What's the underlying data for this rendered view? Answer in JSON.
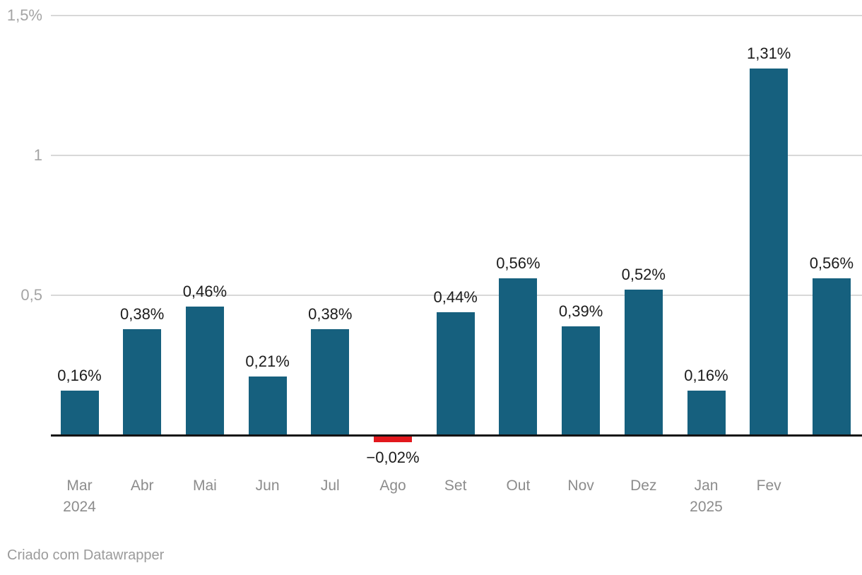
{
  "footer": {
    "attribution": "Criado com Datawrapper"
  },
  "chart_data": {
    "type": "bar",
    "title": "",
    "xlabel": "",
    "ylabel": "",
    "ylim": [
      -0.05,
      1.5
    ],
    "grid": true,
    "unit_suffix": "%",
    "colors": {
      "positive_bar": "#16607e",
      "negative_bar": "#e2181d",
      "gridline": "#d8d8d8",
      "baseline": "#141414",
      "value_label": "#1c1c1c",
      "axis_label": "#8c8c8c",
      "y_tick_label": "#a4a4a4"
    },
    "y_ticks": [
      {
        "value": 1.5,
        "label": "1,5%"
      },
      {
        "value": 1.0,
        "label": "1"
      },
      {
        "value": 0.5,
        "label": "0,5"
      }
    ],
    "points": [
      {
        "month": "Mar",
        "year": "2024",
        "value": 0.16,
        "label": "0,16%"
      },
      {
        "month": "Abr",
        "year": "",
        "value": 0.38,
        "label": "0,38%"
      },
      {
        "month": "Mai",
        "year": "",
        "value": 0.46,
        "label": "0,46%"
      },
      {
        "month": "Jun",
        "year": "",
        "value": 0.21,
        "label": "0,21%"
      },
      {
        "month": "Jul",
        "year": "",
        "value": 0.38,
        "label": "0,38%"
      },
      {
        "month": "Ago",
        "year": "",
        "value": -0.02,
        "label": "−0,02%"
      },
      {
        "month": "Set",
        "year": "",
        "value": 0.44,
        "label": "0,44%"
      },
      {
        "month": "Out",
        "year": "",
        "value": 0.56,
        "label": "0,56%"
      },
      {
        "month": "Nov",
        "year": "",
        "value": 0.39,
        "label": "0,39%"
      },
      {
        "month": "Dez",
        "year": "",
        "value": 0.52,
        "label": "0,52%"
      },
      {
        "month": "Jan",
        "year": "2025",
        "value": 0.16,
        "label": "0,16%"
      },
      {
        "month": "Fev",
        "year": "",
        "value": 1.31,
        "label": "1,31%"
      },
      {
        "month": "",
        "year": "",
        "value": 0.56,
        "label": "0,56%"
      }
    ]
  }
}
